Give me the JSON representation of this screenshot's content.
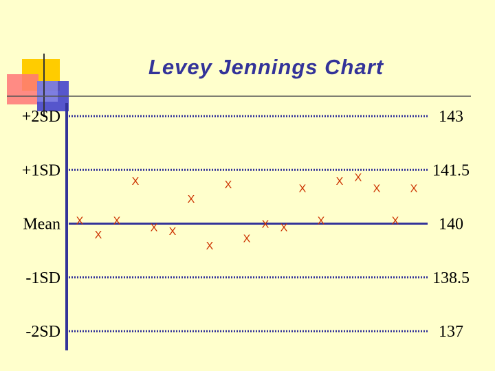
{
  "chart_data": {
    "type": "scatter",
    "title": "Levey Jennings Chart",
    "marker": "X",
    "colors": {
      "axis": "#333399",
      "title": "#333399",
      "points": "#cc3300",
      "background": "#ffffcc",
      "sd_lines": "#333399",
      "decor_yellow": "#ffcc00",
      "decor_red": "#ff6666",
      "decor_blue": "#3333cc"
    },
    "reference_lines": [
      {
        "label": "+2SD",
        "value": 143,
        "value_label": "143",
        "style": "dotted"
      },
      {
        "label": "+1SD",
        "value": 141.5,
        "value_label": "141.5",
        "style": "dotted"
      },
      {
        "label": "Mean",
        "value": 140,
        "value_label": "140",
        "style": "solid"
      },
      {
        "label": "-1SD",
        "value": 138.5,
        "value_label": "138.5",
        "style": "dotted"
      },
      {
        "label": "-2SD",
        "value": 137,
        "value_label": "137",
        "style": "dotted"
      }
    ],
    "ylim": [
      137,
      143
    ],
    "x": [
      1,
      2,
      3,
      4,
      5,
      6,
      7,
      8,
      9,
      10,
      11,
      12,
      13,
      14,
      15,
      16,
      17,
      18,
      19
    ],
    "y": [
      140.1,
      139.7,
      140.1,
      141.2,
      139.9,
      139.8,
      140.7,
      139.4,
      141.1,
      139.6,
      140.0,
      139.9,
      141.0,
      140.1,
      141.2,
      141.3,
      141.0,
      140.1,
      141.0
    ],
    "grid": false,
    "legend": "none"
  }
}
